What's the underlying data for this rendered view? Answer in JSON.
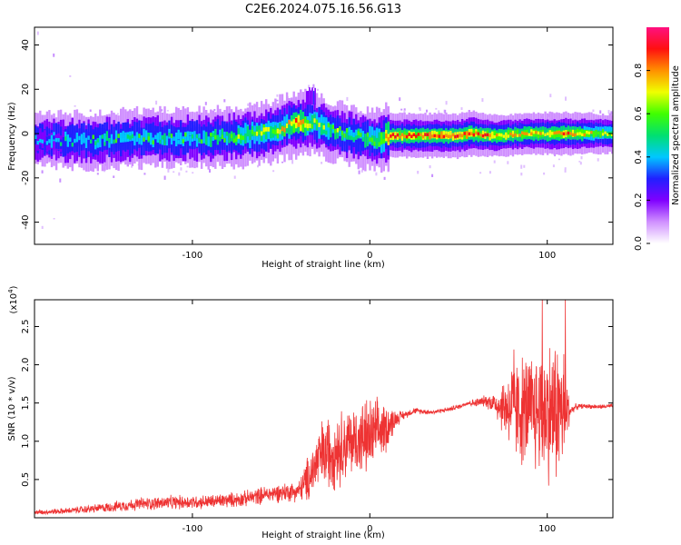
{
  "figure_title": "C2E6.2024.075.16.56.G13",
  "chart_data": [
    {
      "type": "heatmap",
      "title": "C2E6.2024.075.16.56.G13",
      "xlabel": "Height of straight line (km)",
      "ylabel": "Frequency (Hz)",
      "xlim": [
        -189,
        137
      ],
      "ylim": [
        -50,
        48
      ],
      "xticks": [
        -100,
        0,
        100
      ],
      "yticks": [
        -40,
        -20,
        0,
        20,
        40
      ],
      "xtick_labels": [
        "-100",
        "0",
        "100"
      ],
      "ytick_labels": [
        "-40",
        "-20",
        "0",
        "20",
        "40"
      ],
      "colorbar": {
        "label": "Normalized spectral amplitude",
        "range": [
          0.0,
          1.0
        ],
        "ticks": [
          0.0,
          0.2,
          0.4,
          0.6,
          0.8
        ],
        "tick_labels": [
          "0.0",
          "0.2",
          "0.4",
          "0.6",
          "0.8"
        ],
        "colors": [
          "#ffffff",
          "#d090ff",
          "#8000ff",
          "#2020ff",
          "#00c8ff",
          "#00e070",
          "#40ff00",
          "#f0ff00",
          "#ff9000",
          "#ff1010",
          "#ff1080"
        ]
      },
      "ridge": {
        "x": [
          -189,
          -170,
          -150,
          -130,
          -110,
          -90,
          -70,
          -55,
          -45,
          -38,
          -33,
          -25,
          -15,
          -5,
          5,
          10,
          30,
          50,
          56,
          70,
          90,
          110,
          137
        ],
        "freq": [
          -3,
          -3,
          -3,
          -2,
          -2,
          -2,
          -1,
          1,
          4,
          5,
          5,
          2,
          0,
          -2,
          -3,
          -1,
          -1,
          -1,
          0,
          -1,
          0,
          0,
          0
        ],
        "amplitude": [
          0.3,
          0.4,
          0.45,
          0.45,
          0.45,
          0.5,
          0.55,
          0.6,
          0.7,
          0.75,
          0.6,
          0.55,
          0.5,
          0.5,
          0.6,
          0.8,
          0.8,
          0.8,
          0.85,
          0.7,
          0.7,
          0.75,
          0.6
        ]
      },
      "burst": {
        "x": [
          -36,
          -31
        ],
        "freq": [
          13,
          21
        ]
      }
    },
    {
      "type": "line",
      "xlabel": "Height of straight line (km)",
      "ylabel": "SNR (10 * v/v)",
      "y_multiplier": "(x10",
      "y_multiplier_exp": "4",
      "y_multiplier_close": ")",
      "xlim": [
        -189,
        137
      ],
      "ylim": [
        0,
        28500
      ],
      "xticks": [
        -100,
        0,
        100
      ],
      "xtick_labels": [
        "-100",
        "0",
        "100"
      ],
      "yticks": [
        5000,
        10000,
        15000,
        20000,
        25000
      ],
      "ytick_labels": [
        "0.5",
        "1.0",
        "1.5",
        "2.0",
        "2.5"
      ],
      "color": "#ee3333",
      "envelope": {
        "x": [
          -189,
          -170,
          -150,
          -130,
          -110,
          -90,
          -70,
          -60,
          -50,
          -40,
          -35,
          -28,
          -20,
          -10,
          0,
          10,
          15,
          20,
          25,
          35,
          40,
          45,
          50,
          55,
          60,
          65,
          70,
          75,
          80,
          85,
          90,
          95,
          100,
          105,
          110,
          113,
          116,
          120,
          130,
          137
        ],
        "mean": [
          700,
          900,
          1300,
          1800,
          2000,
          2100,
          2500,
          3000,
          3300,
          3500,
          5000,
          8000,
          9000,
          10000,
          10500,
          12000,
          13000,
          13500,
          14000,
          13800,
          14000,
          14200,
          14500,
          15000,
          15000,
          15300,
          15000,
          14500,
          14500,
          14000,
          14000,
          14000,
          14000,
          14000,
          14000,
          14000,
          14500,
          14600,
          14500,
          14600
        ],
        "spread": [
          300,
          400,
          600,
          800,
          900,
          900,
          1000,
          1100,
          1200,
          1300,
          3000,
          4500,
          5000,
          4500,
          5000,
          3000,
          1000,
          500,
          400,
          300,
          300,
          300,
          300,
          300,
          600,
          700,
          1500,
          3500,
          6000,
          7000,
          7500,
          8000,
          9000,
          9500,
          8000,
          600,
          400,
          300,
          300,
          300
        ]
      },
      "peaks": [
        {
          "x": 81,
          "y": 22000
        },
        {
          "x": 97,
          "y": 29000
        },
        {
          "x": 110,
          "y": 28500
        }
      ]
    }
  ]
}
